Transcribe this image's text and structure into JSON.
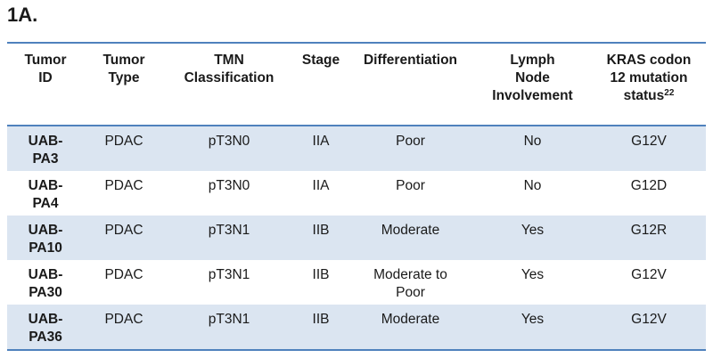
{
  "heading": "1A.",
  "table": {
    "headers": [
      [
        "Tumor",
        "ID"
      ],
      [
        "Tumor",
        "Type"
      ],
      [
        "TMN",
        "Classification"
      ],
      [
        "Stage"
      ],
      [
        "Differentiation"
      ],
      [
        "Lymph",
        "Node",
        "Involvement"
      ],
      [
        "KRAS codon",
        "12 mutation",
        "status"
      ]
    ],
    "header_superscript": "22",
    "rows": [
      {
        "id": [
          "UAB-",
          "PA3"
        ],
        "type": "PDAC",
        "tmn": "pT3N0",
        "stage": "IIA",
        "differentiation": [
          "Poor"
        ],
        "lymph": "No",
        "kras": "G12V"
      },
      {
        "id": [
          "UAB-",
          "PA4"
        ],
        "type": "PDAC",
        "tmn": "pT3N0",
        "stage": "IIA",
        "differentiation": [
          "Poor"
        ],
        "lymph": "No",
        "kras": "G12D"
      },
      {
        "id": [
          "UAB-",
          "PA10"
        ],
        "type": "PDAC",
        "tmn": "pT3N1",
        "stage": "IIB",
        "differentiation": [
          "Moderate"
        ],
        "lymph": "Yes",
        "kras": "G12R"
      },
      {
        "id": [
          "UAB-",
          "PA30"
        ],
        "type": "PDAC",
        "tmn": "pT3N1",
        "stage": "IIB",
        "differentiation": [
          "Moderate to",
          "Poor"
        ],
        "lymph": "Yes",
        "kras": "G12V"
      },
      {
        "id": [
          "UAB-",
          "PA36"
        ],
        "type": "PDAC",
        "tmn": "pT3N1",
        "stage": "IIB",
        "differentiation": [
          "Moderate"
        ],
        "lymph": "Yes",
        "kras": "G12V"
      }
    ],
    "colors": {
      "rule": "#4f81bd",
      "band": "#dbe5f1"
    }
  }
}
